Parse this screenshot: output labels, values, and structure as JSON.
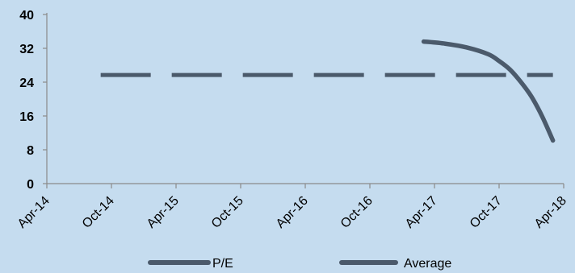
{
  "chart_data": {
    "type": "line",
    "title": "",
    "xlabel": "",
    "ylabel": "",
    "x_ticks": [
      "Apr-14",
      "Oct-14",
      "Apr-15",
      "Oct-15",
      "Apr-16",
      "Oct-16",
      "Apr-17",
      "Oct-17",
      "Apr-18"
    ],
    "y_ticks": [
      0,
      8,
      16,
      24,
      32,
      40
    ],
    "ylim": [
      0,
      40
    ],
    "grid": false,
    "legend_position": "bottom",
    "series": [
      {
        "name": "P/E",
        "style": "solid",
        "color": "#4b5a6b",
        "x": [
          "2017-03",
          "2017-05",
          "2017-07",
          "2017-09",
          "2017-10",
          "2017-11",
          "2017-12",
          "2018-01",
          "2018-02",
          "2018-03"
        ],
        "y": [
          33.6,
          33.1,
          32.2,
          30.6,
          29.0,
          27.0,
          24.1,
          20.6,
          15.9,
          10.2
        ]
      },
      {
        "name": "Average",
        "style": "dashed",
        "color": "#4b5a6b",
        "x": [
          "2014-09",
          "2018-03"
        ],
        "y": [
          25.7,
          25.7
        ]
      }
    ]
  }
}
